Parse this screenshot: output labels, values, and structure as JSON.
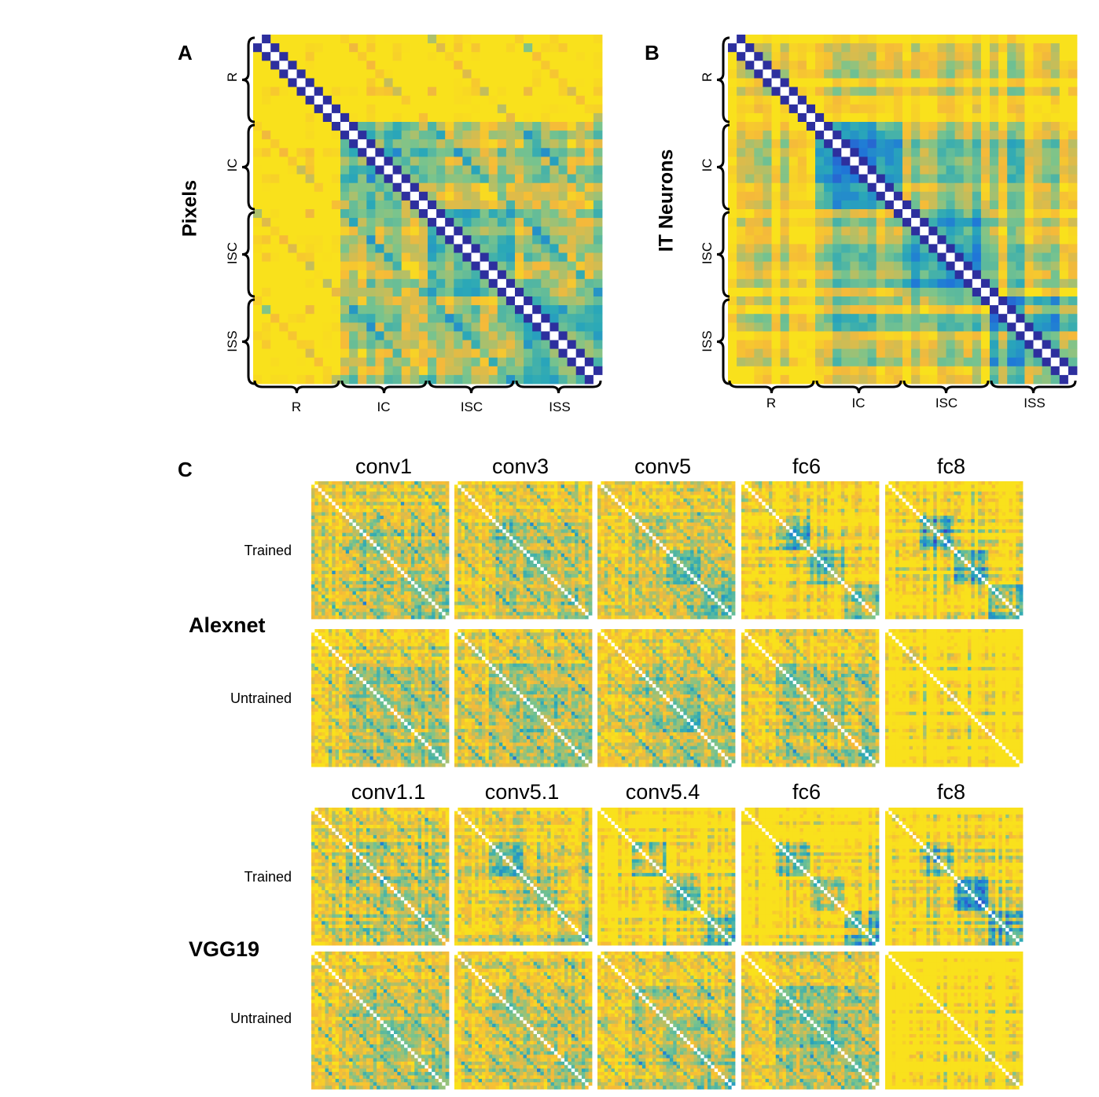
{
  "panels": {
    "a": {
      "letter": "A",
      "title": "Pixels",
      "groups": [
        "R",
        "IC",
        "ISC",
        "ISS"
      ]
    },
    "b": {
      "letter": "B",
      "title": "IT Neurons",
      "groups": [
        "R",
        "IC",
        "ISC",
        "ISS"
      ]
    },
    "c": {
      "letter": "C",
      "networks": [
        {
          "name": "Alexnet",
          "layers": [
            "conv1",
            "conv3",
            "conv5",
            "fc6",
            "fc8"
          ],
          "rows": [
            "Trained",
            "Untrained"
          ]
        },
        {
          "name": "VGG19",
          "layers": [
            "conv1.1",
            "conv5.1",
            "conv5.4",
            "fc6",
            "fc8"
          ],
          "rows": [
            "Trained",
            "Untrained"
          ]
        }
      ]
    }
  },
  "chart_data": [
    {
      "type": "heatmap",
      "title": "Pixels",
      "row_groups": [
        "R",
        "IC",
        "ISC",
        "ISS"
      ],
      "col_groups": [
        "R",
        "IC",
        "ISC",
        "ISS"
      ],
      "stimuli_per_group": 10,
      "colormap": [
        "#3a3fbf",
        "#1f78d8",
        "#2aa8b8",
        "#7bc48c",
        "#f5b93a",
        "#f9e11c"
      ],
      "diagonal_color": "#ffffff"
    },
    {
      "type": "heatmap",
      "title": "IT Neurons",
      "row_groups": [
        "R",
        "IC",
        "ISC",
        "ISS"
      ],
      "col_groups": [
        "R",
        "IC",
        "ISC",
        "ISS"
      ],
      "stimuli_per_group": 10,
      "colormap": [
        "#3a3fbf",
        "#1f78d8",
        "#2aa8b8",
        "#7bc48c",
        "#f5b93a",
        "#f9e11c"
      ],
      "diagonal_color": "#ffffff"
    }
  ]
}
